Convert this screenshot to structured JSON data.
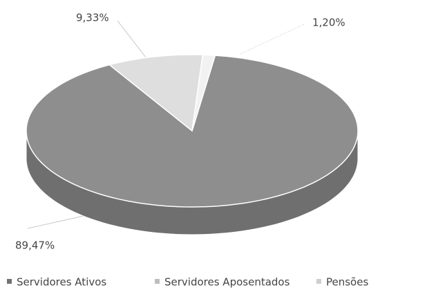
{
  "chart_data": {
    "type": "pie",
    "categories": [
      "Servidores Ativos",
      "Servidores Aposentados",
      "Pensões"
    ],
    "values": [
      89.47,
      9.33,
      1.2
    ],
    "value_labels": [
      "89,47%",
      "9,33%",
      "1,20%"
    ],
    "colors": [
      "#8e8e8e",
      "#dedede",
      "#f2f2f2"
    ],
    "legend": "bottom"
  }
}
